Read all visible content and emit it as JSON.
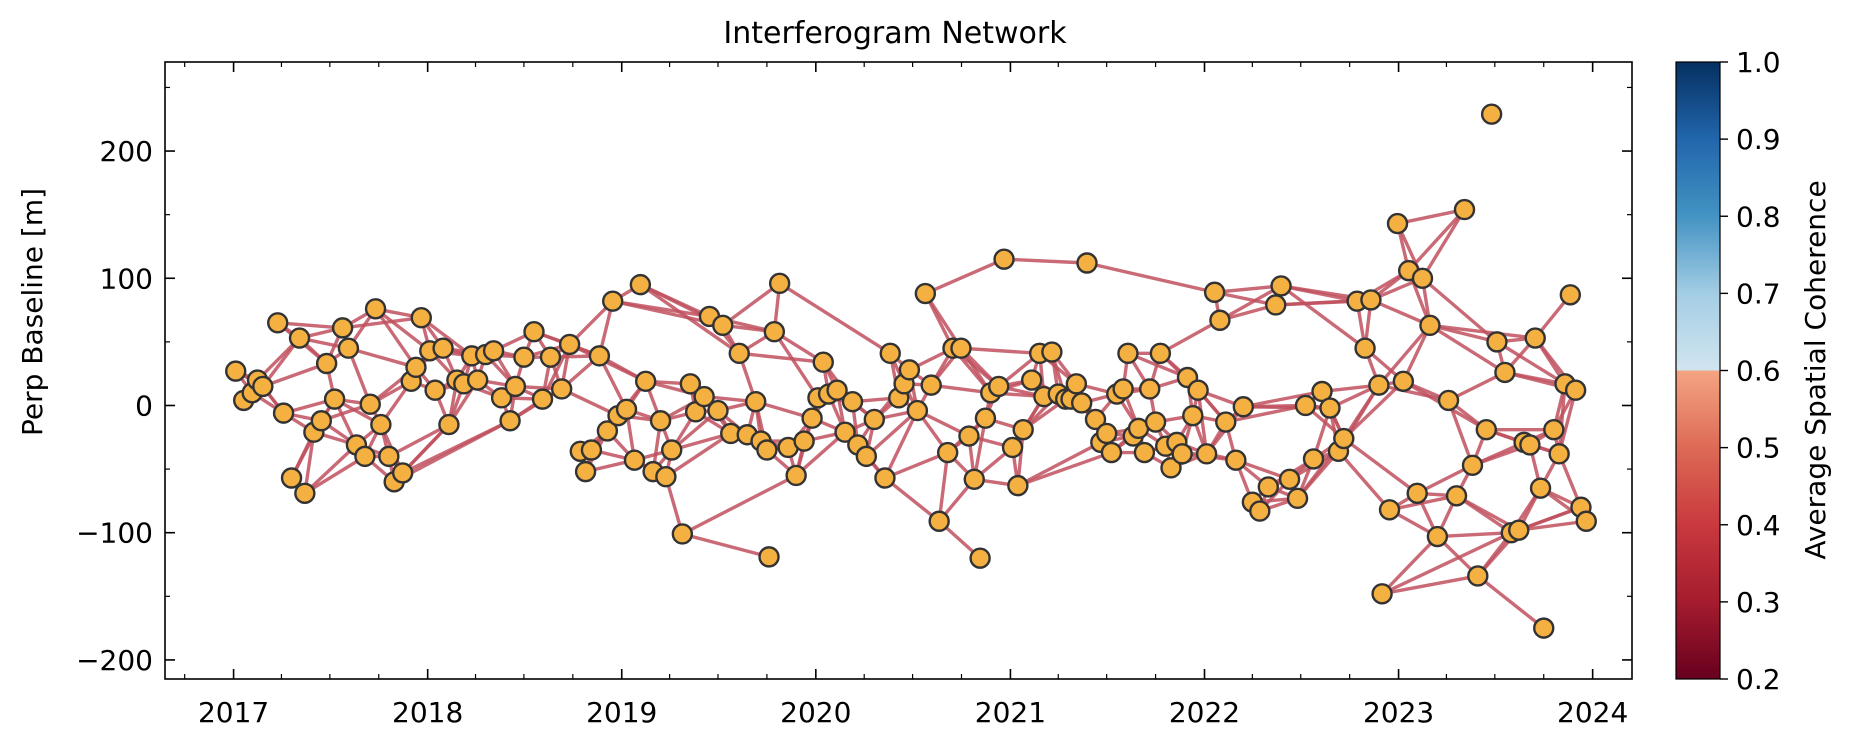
{
  "chart_data": {
    "type": "network",
    "title": "Interferogram Network",
    "xlabel": "",
    "ylabel": "Perp Baseline [m]",
    "xlim": [
      "2016-08-25",
      "2024-03-15"
    ],
    "ylim": [
      -215,
      270
    ],
    "x_ticks": [
      "2017",
      "2018",
      "2019",
      "2020",
      "2021",
      "2022",
      "2023",
      "2024"
    ],
    "y_ticks": [
      -200,
      -100,
      0,
      100,
      200
    ],
    "y_tick_labels": [
      "−200",
      "−100",
      "0",
      "100",
      "200"
    ],
    "grid": false,
    "colorbar": {
      "label": "Average Spatial Coherence",
      "range": [
        0.2,
        1.0
      ],
      "ticks": [
        "0.2",
        "0.3",
        "0.4",
        "0.5",
        "0.6",
        "0.7",
        "0.8",
        "0.9",
        "1.0"
      ],
      "colormap": "RdBu"
    },
    "node_color": "#f5b042",
    "edge_color": "#c0505e",
    "edge_coherence": 0.37,
    "nodes": [
      {
        "date": "2017-01-05",
        "bperp": 27
      },
      {
        "date": "2017-01-20",
        "bperp": 4
      },
      {
        "date": "2017-02-05",
        "bperp": 10
      },
      {
        "date": "2017-02-15",
        "bperp": 20
      },
      {
        "date": "2017-02-25",
        "bperp": 15
      },
      {
        "date": "2017-03-25",
        "bperp": 65
      },
      {
        "date": "2017-04-05",
        "bperp": -6
      },
      {
        "date": "2017-04-20",
        "bperp": -57
      },
      {
        "date": "2017-05-05",
        "bperp": 53
      },
      {
        "date": "2017-05-15",
        "bperp": -69
      },
      {
        "date": "2017-06-01",
        "bperp": -21
      },
      {
        "date": "2017-06-15",
        "bperp": -12
      },
      {
        "date": "2017-06-25",
        "bperp": 33
      },
      {
        "date": "2017-07-10",
        "bperp": 5
      },
      {
        "date": "2017-07-25",
        "bperp": 61
      },
      {
        "date": "2017-08-05",
        "bperp": 45
      },
      {
        "date": "2017-08-20",
        "bperp": -31
      },
      {
        "date": "2017-09-05",
        "bperp": -40
      },
      {
        "date": "2017-09-15",
        "bperp": 1
      },
      {
        "date": "2017-09-25",
        "bperp": 76
      },
      {
        "date": "2017-10-05",
        "bperp": -15
      },
      {
        "date": "2017-10-20",
        "bperp": -40
      },
      {
        "date": "2017-10-30",
        "bperp": -60
      },
      {
        "date": "2017-11-15",
        "bperp": -53
      },
      {
        "date": "2017-12-01",
        "bperp": 19
      },
      {
        "date": "2017-12-10",
        "bperp": 30
      },
      {
        "date": "2017-12-20",
        "bperp": 69
      },
      {
        "date": "2018-01-05",
        "bperp": 43
      },
      {
        "date": "2018-01-15",
        "bperp": 12
      },
      {
        "date": "2018-01-30",
        "bperp": 45
      },
      {
        "date": "2018-02-10",
        "bperp": -15
      },
      {
        "date": "2018-02-25",
        "bperp": 20
      },
      {
        "date": "2018-03-10",
        "bperp": 17
      },
      {
        "date": "2018-03-25",
        "bperp": 39
      },
      {
        "date": "2018-04-05",
        "bperp": 20
      },
      {
        "date": "2018-04-20",
        "bperp": 40
      },
      {
        "date": "2018-05-05",
        "bperp": 43
      },
      {
        "date": "2018-05-20",
        "bperp": 6
      },
      {
        "date": "2018-06-05",
        "bperp": -12
      },
      {
        "date": "2018-06-15",
        "bperp": 15
      },
      {
        "date": "2018-07-01",
        "bperp": 38
      },
      {
        "date": "2018-07-20",
        "bperp": 58
      },
      {
        "date": "2018-08-05",
        "bperp": 5
      },
      {
        "date": "2018-08-20",
        "bperp": 38
      },
      {
        "date": "2018-09-10",
        "bperp": 13
      },
      {
        "date": "2018-09-25",
        "bperp": 48
      },
      {
        "date": "2018-10-15",
        "bperp": -36
      },
      {
        "date": "2018-10-25",
        "bperp": -52
      },
      {
        "date": "2018-11-05",
        "bperp": -35
      },
      {
        "date": "2018-11-20",
        "bperp": 39
      },
      {
        "date": "2018-12-05",
        "bperp": -20
      },
      {
        "date": "2018-12-15",
        "bperp": 82
      },
      {
        "date": "2018-12-25",
        "bperp": -8
      },
      {
        "date": "2019-01-10",
        "bperp": -3
      },
      {
        "date": "2019-01-25",
        "bperp": -43
      },
      {
        "date": "2019-02-05",
        "bperp": 95
      },
      {
        "date": "2019-02-15",
        "bperp": 19
      },
      {
        "date": "2019-03-01",
        "bperp": -52
      },
      {
        "date": "2019-03-15",
        "bperp": -12
      },
      {
        "date": "2019-03-25",
        "bperp": -56
      },
      {
        "date": "2019-04-05",
        "bperp": -35
      },
      {
        "date": "2019-04-25",
        "bperp": -101
      },
      {
        "date": "2019-05-10",
        "bperp": 17
      },
      {
        "date": "2019-05-20",
        "bperp": -5
      },
      {
        "date": "2019-06-05",
        "bperp": 7
      },
      {
        "date": "2019-06-15",
        "bperp": 70
      },
      {
        "date": "2019-07-01",
        "bperp": -4
      },
      {
        "date": "2019-07-10",
        "bperp": 63
      },
      {
        "date": "2019-07-25",
        "bperp": -22
      },
      {
        "date": "2019-08-10",
        "bperp": 41
      },
      {
        "date": "2019-08-25",
        "bperp": -23
      },
      {
        "date": "2019-09-10",
        "bperp": 3
      },
      {
        "date": "2019-09-20",
        "bperp": -28
      },
      {
        "date": "2019-10-01",
        "bperp": -35
      },
      {
        "date": "2019-10-05",
        "bperp": -119
      },
      {
        "date": "2019-10-15",
        "bperp": 58
      },
      {
        "date": "2019-10-25",
        "bperp": 96
      },
      {
        "date": "2019-11-10",
        "bperp": -33
      },
      {
        "date": "2019-11-25",
        "bperp": -55
      },
      {
        "date": "2019-12-10",
        "bperp": -28
      },
      {
        "date": "2019-12-25",
        "bperp": -10
      },
      {
        "date": "2020-01-05",
        "bperp": 6
      },
      {
        "date": "2020-01-15",
        "bperp": 34
      },
      {
        "date": "2020-01-25",
        "bperp": 9
      },
      {
        "date": "2020-02-10",
        "bperp": 12
      },
      {
        "date": "2020-02-25",
        "bperp": -21
      },
      {
        "date": "2020-03-10",
        "bperp": 3
      },
      {
        "date": "2020-03-20",
        "bperp": -31
      },
      {
        "date": "2020-04-05",
        "bperp": -40
      },
      {
        "date": "2020-04-20",
        "bperp": -11
      },
      {
        "date": "2020-05-10",
        "bperp": -57
      },
      {
        "date": "2020-05-20",
        "bperp": 41
      },
      {
        "date": "2020-06-05",
        "bperp": 6
      },
      {
        "date": "2020-06-15",
        "bperp": 17
      },
      {
        "date": "2020-06-25",
        "bperp": 28
      },
      {
        "date": "2020-07-10",
        "bperp": -4
      },
      {
        "date": "2020-07-25",
        "bperp": 88
      },
      {
        "date": "2020-08-05",
        "bperp": 16
      },
      {
        "date": "2020-08-20",
        "bperp": -91
      },
      {
        "date": "2020-09-05",
        "bperp": -37
      },
      {
        "date": "2020-09-15",
        "bperp": 45
      },
      {
        "date": "2020-09-30",
        "bperp": 45
      },
      {
        "date": "2020-10-15",
        "bperp": -24
      },
      {
        "date": "2020-10-25",
        "bperp": -58
      },
      {
        "date": "2020-11-05",
        "bperp": -120
      },
      {
        "date": "2020-11-15",
        "bperp": -10
      },
      {
        "date": "2020-11-25",
        "bperp": 10
      },
      {
        "date": "2020-12-10",
        "bperp": 15
      },
      {
        "date": "2020-12-20",
        "bperp": 115
      },
      {
        "date": "2021-01-05",
        "bperp": -33
      },
      {
        "date": "2021-01-15",
        "bperp": -63
      },
      {
        "date": "2021-01-25",
        "bperp": -19
      },
      {
        "date": "2021-02-10",
        "bperp": 20
      },
      {
        "date": "2021-02-25",
        "bperp": 41
      },
      {
        "date": "2021-03-05",
        "bperp": 7
      },
      {
        "date": "2021-03-20",
        "bperp": 42
      },
      {
        "date": "2021-04-01",
        "bperp": 9
      },
      {
        "date": "2021-04-15",
        "bperp": 5
      },
      {
        "date": "2021-04-25",
        "bperp": 5
      },
      {
        "date": "2021-05-05",
        "bperp": 17
      },
      {
        "date": "2021-05-15",
        "bperp": 2
      },
      {
        "date": "2021-05-25",
        "bperp": 112
      },
      {
        "date": "2021-06-10",
        "bperp": -11
      },
      {
        "date": "2021-06-20",
        "bperp": -29
      },
      {
        "date": "2021-07-01",
        "bperp": -22
      },
      {
        "date": "2021-07-10",
        "bperp": -37
      },
      {
        "date": "2021-07-20",
        "bperp": 9
      },
      {
        "date": "2021-08-01",
        "bperp": 13
      },
      {
        "date": "2021-08-10",
        "bperp": 41
      },
      {
        "date": "2021-08-20",
        "bperp": -24
      },
      {
        "date": "2021-08-30",
        "bperp": -18
      },
      {
        "date": "2021-09-10",
        "bperp": -37
      },
      {
        "date": "2021-09-20",
        "bperp": 13
      },
      {
        "date": "2021-10-01",
        "bperp": -13
      },
      {
        "date": "2021-10-10",
        "bperp": 41
      },
      {
        "date": "2021-10-20",
        "bperp": -32
      },
      {
        "date": "2021-10-30",
        "bperp": -49
      },
      {
        "date": "2021-11-10",
        "bperp": -29
      },
      {
        "date": "2021-11-20",
        "bperp": -38
      },
      {
        "date": "2021-11-30",
        "bperp": 22
      },
      {
        "date": "2021-12-10",
        "bperp": -8
      },
      {
        "date": "2021-12-20",
        "bperp": 12
      },
      {
        "date": "2022-01-05",
        "bperp": -38
      },
      {
        "date": "2022-01-20",
        "bperp": 89
      },
      {
        "date": "2022-01-30",
        "bperp": 67
      },
      {
        "date": "2022-02-10",
        "bperp": -13
      },
      {
        "date": "2022-03-01",
        "bperp": -43
      },
      {
        "date": "2022-03-15",
        "bperp": -1
      },
      {
        "date": "2022-04-01",
        "bperp": -76
      },
      {
        "date": "2022-04-15",
        "bperp": -83
      },
      {
        "date": "2022-05-01",
        "bperp": -64
      },
      {
        "date": "2022-05-15",
        "bperp": 79
      },
      {
        "date": "2022-05-25",
        "bperp": 94
      },
      {
        "date": "2022-06-10",
        "bperp": -58
      },
      {
        "date": "2022-06-25",
        "bperp": -73
      },
      {
        "date": "2022-07-10",
        "bperp": 0
      },
      {
        "date": "2022-07-25",
        "bperp": -42
      },
      {
        "date": "2022-08-10",
        "bperp": 11
      },
      {
        "date": "2022-08-25",
        "bperp": -2
      },
      {
        "date": "2022-09-10",
        "bperp": -36
      },
      {
        "date": "2022-09-20",
        "bperp": -26
      },
      {
        "date": "2022-10-15",
        "bperp": 82
      },
      {
        "date": "2022-10-30",
        "bperp": 45
      },
      {
        "date": "2022-11-10",
        "bperp": 83
      },
      {
        "date": "2022-11-25",
        "bperp": 16
      },
      {
        "date": "2022-12-01",
        "bperp": -148
      },
      {
        "date": "2022-12-15",
        "bperp": -82
      },
      {
        "date": "2022-12-30",
        "bperp": 143
      },
      {
        "date": "2023-01-10",
        "bperp": 19
      },
      {
        "date": "2023-01-20",
        "bperp": 106
      },
      {
        "date": "2023-02-05",
        "bperp": -69
      },
      {
        "date": "2023-02-15",
        "bperp": 100
      },
      {
        "date": "2023-03-01",
        "bperp": 63
      },
      {
        "date": "2023-03-15",
        "bperp": -103
      },
      {
        "date": "2023-04-05",
        "bperp": 4
      },
      {
        "date": "2023-04-20",
        "bperp": -71
      },
      {
        "date": "2023-05-05",
        "bperp": 154
      },
      {
        "date": "2023-05-20",
        "bperp": -47
      },
      {
        "date": "2023-05-30",
        "bperp": -134
      },
      {
        "date": "2023-06-15",
        "bperp": -19
      },
      {
        "date": "2023-06-25",
        "bperp": 229
      },
      {
        "date": "2023-07-05",
        "bperp": 50
      },
      {
        "date": "2023-07-20",
        "bperp": 26
      },
      {
        "date": "2023-08-01",
        "bperp": -100
      },
      {
        "date": "2023-08-15",
        "bperp": -98
      },
      {
        "date": "2023-08-25",
        "bperp": -29
      },
      {
        "date": "2023-09-05",
        "bperp": -31
      },
      {
        "date": "2023-09-15",
        "bperp": 53
      },
      {
        "date": "2023-09-25",
        "bperp": -65
      },
      {
        "date": "2023-10-01",
        "bperp": -175
      },
      {
        "date": "2023-10-20",
        "bperp": -19
      },
      {
        "date": "2023-10-30",
        "bperp": -38
      },
      {
        "date": "2023-11-10",
        "bperp": 17
      },
      {
        "date": "2023-11-20",
        "bperp": 87
      },
      {
        "date": "2023-11-30",
        "bperp": 12
      },
      {
        "date": "2023-12-10",
        "bperp": -80
      },
      {
        "date": "2023-12-20",
        "bperp": -91
      }
    ]
  }
}
